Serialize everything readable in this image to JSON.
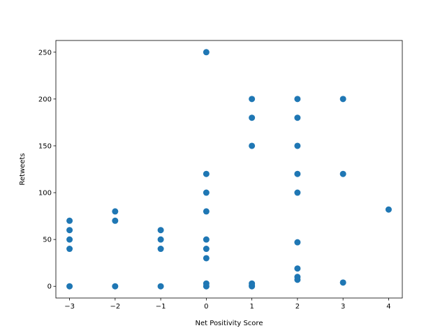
{
  "chart_data": {
    "type": "scatter",
    "xlabel": "Net Positivity Score",
    "ylabel": "Retweets",
    "xlim": [
      -3.3,
      4.3
    ],
    "ylim": [
      -12.5,
      262.5
    ],
    "x_ticks": [
      -3,
      -2,
      -1,
      0,
      1,
      2,
      3,
      4
    ],
    "y_ticks": [
      0,
      50,
      100,
      150,
      200,
      250
    ],
    "grid": false,
    "color": "#1f77b4",
    "points": [
      {
        "x": -3,
        "y": 70
      },
      {
        "x": -3,
        "y": 60
      },
      {
        "x": -3,
        "y": 50
      },
      {
        "x": -3,
        "y": 40
      },
      {
        "x": -3,
        "y": 0
      },
      {
        "x": -2,
        "y": 80
      },
      {
        "x": -2,
        "y": 70
      },
      {
        "x": -2,
        "y": 0
      },
      {
        "x": -1,
        "y": 60
      },
      {
        "x": -1,
        "y": 50
      },
      {
        "x": -1,
        "y": 40
      },
      {
        "x": -1,
        "y": 0
      },
      {
        "x": 0,
        "y": 250
      },
      {
        "x": 0,
        "y": 120
      },
      {
        "x": 0,
        "y": 100
      },
      {
        "x": 0,
        "y": 80
      },
      {
        "x": 0,
        "y": 50
      },
      {
        "x": 0,
        "y": 40
      },
      {
        "x": 0,
        "y": 30
      },
      {
        "x": 0,
        "y": 3
      },
      {
        "x": 0,
        "y": 0
      },
      {
        "x": 1,
        "y": 200
      },
      {
        "x": 1,
        "y": 180
      },
      {
        "x": 1,
        "y": 150
      },
      {
        "x": 1,
        "y": 3
      },
      {
        "x": 1,
        "y": 1
      },
      {
        "x": 1,
        "y": 0
      },
      {
        "x": 2,
        "y": 200
      },
      {
        "x": 2,
        "y": 180
      },
      {
        "x": 2,
        "y": 150
      },
      {
        "x": 2,
        "y": 120
      },
      {
        "x": 2,
        "y": 100
      },
      {
        "x": 2,
        "y": 47
      },
      {
        "x": 2,
        "y": 19
      },
      {
        "x": 2,
        "y": 10
      },
      {
        "x": 2,
        "y": 7
      },
      {
        "x": 3,
        "y": 200
      },
      {
        "x": 3,
        "y": 120
      },
      {
        "x": 3,
        "y": 4
      },
      {
        "x": 4,
        "y": 82
      }
    ]
  }
}
